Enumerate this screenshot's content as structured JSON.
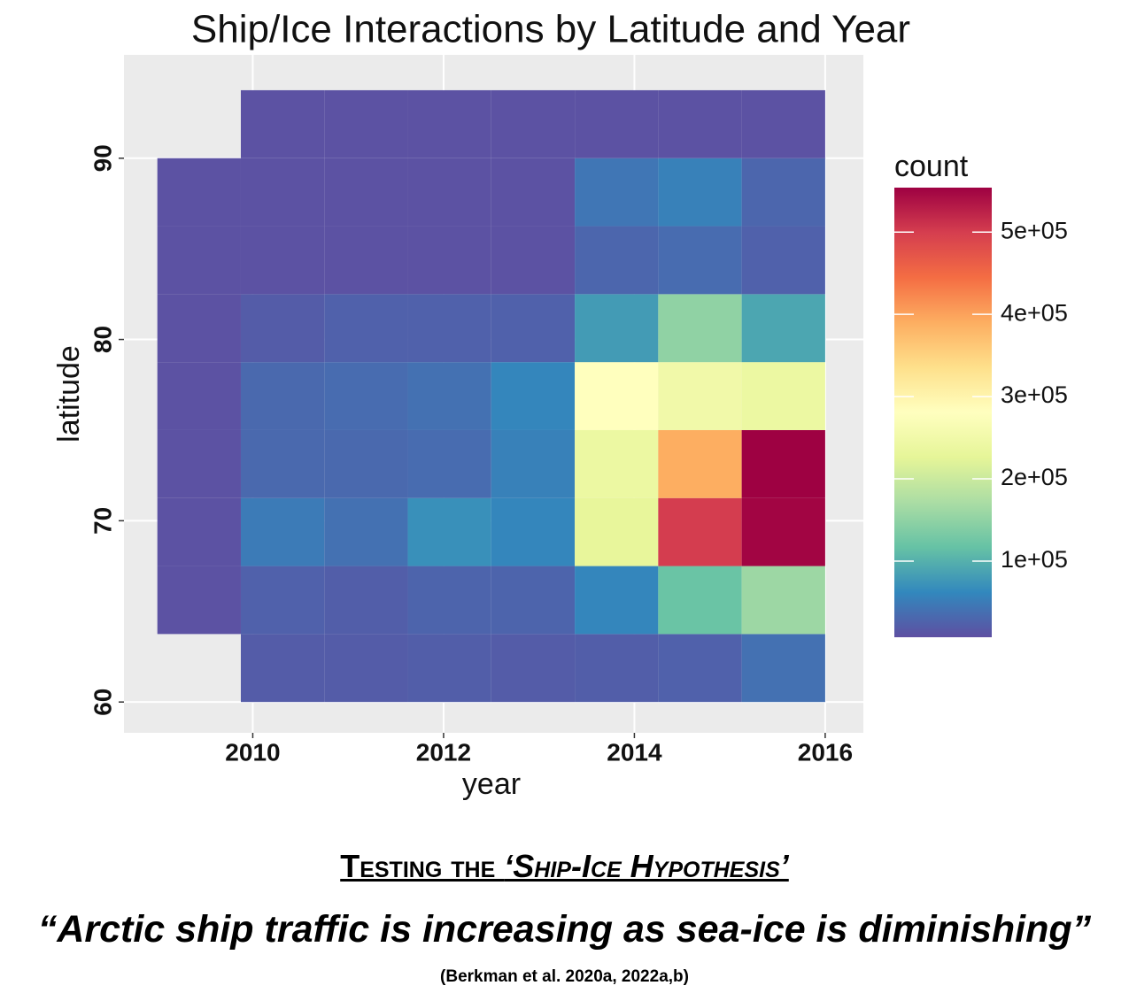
{
  "chart_data": {
    "type": "heatmap",
    "title": "Ship/Ice Interactions by Latitude and Year",
    "x_label": "year",
    "y_label": "latitude",
    "x_bins": [
      2009,
      2009.875,
      2010.75,
      2011.625,
      2012.5,
      2013.375,
      2014.25,
      2015.125,
      2016
    ],
    "y_bins": [
      60,
      63.75,
      67.5,
      71.25,
      75,
      78.75,
      82.5,
      86.25,
      90,
      93.75
    ],
    "values": [
      [
        null,
        20000,
        20000,
        22000,
        20000,
        22000,
        25000,
        40000
      ],
      [
        10000,
        25000,
        22000,
        28000,
        28000,
        60000,
        120000,
        160000
      ],
      [
        10000,
        50000,
        40000,
        70000,
        60000,
        230000,
        500000,
        550000
      ],
      [
        10000,
        32000,
        32000,
        35000,
        55000,
        240000,
        390000,
        554000
      ],
      [
        10000,
        32000,
        35000,
        40000,
        60000,
        280000,
        250000,
        240000
      ],
      [
        10000,
        20000,
        25000,
        25000,
        25000,
        80000,
        150000,
        90000
      ],
      [
        10000,
        10000,
        10000,
        10000,
        10000,
        30000,
        35000,
        25000
      ],
      [
        10000,
        10000,
        10000,
        10000,
        10000,
        45000,
        55000,
        30000
      ],
      [
        null,
        10000,
        10000,
        10000,
        10000,
        10000,
        10000,
        10000
      ]
    ],
    "xlim": [
      2008.65,
      2016.4
    ],
    "ylim": [
      58.3,
      95.7
    ],
    "xticks": [
      2010,
      2012,
      2014,
      2016
    ],
    "yticks": [
      60,
      70,
      80,
      90
    ],
    "grid": true,
    "legend": {
      "title": "count",
      "range": [
        7500,
        554000
      ],
      "ticks": [
        {
          "value": 100000,
          "label": "1e+05"
        },
        {
          "value": 200000,
          "label": "2e+05"
        },
        {
          "value": 300000,
          "label": "3e+05"
        },
        {
          "value": 400000,
          "label": "4e+05"
        },
        {
          "value": 500000,
          "label": "5e+05"
        }
      ],
      "colors": [
        "#5E4FA2",
        "#3288BD",
        "#66C2A5",
        "#ABDDA4",
        "#E6F598",
        "#FFFFBF",
        "#FEE08B",
        "#FDAE61",
        "#F46D43",
        "#D53E4F",
        "#9E0142"
      ]
    }
  },
  "footer": {
    "heading": "Testing the ",
    "heading_emphasis": "‘Ship-Ice Hypothesis’",
    "quote": "“Arctic ship traffic is increasing as sea-ice is diminishing”",
    "citation": "(Berkman et al. 2020a, 2022a,b)"
  }
}
